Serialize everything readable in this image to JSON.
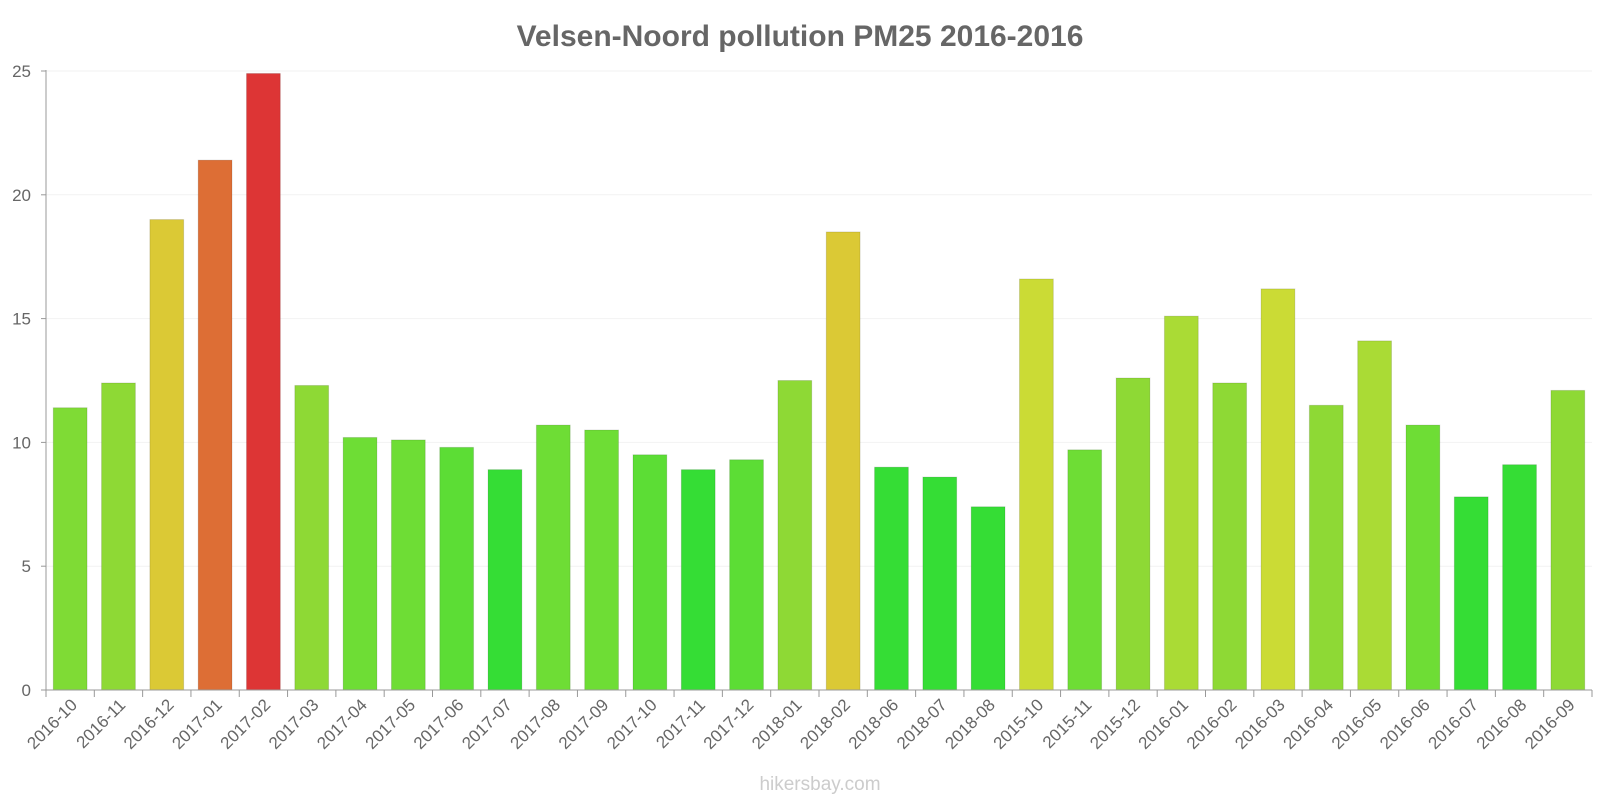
{
  "chart_data": {
    "type": "bar",
    "title": "Velsen-Noord pollution PM25 2016-2016",
    "xlabel": "",
    "ylabel": "",
    "ylim": [
      0,
      25
    ],
    "yticks": [
      0,
      5,
      10,
      15,
      20,
      25
    ],
    "grid": true,
    "categories": [
      "2016-10",
      "2016-11",
      "2016-12",
      "2017-01",
      "2017-02",
      "2017-03",
      "2017-04",
      "2017-05",
      "2017-06",
      "2017-07",
      "2017-08",
      "2017-09",
      "2017-10",
      "2017-11",
      "2017-12",
      "2018-01",
      "2018-02",
      "2018-06",
      "2018-07",
      "2018-08",
      "2015-10",
      "2015-11",
      "2015-12",
      "2016-01",
      "2016-02",
      "2016-03",
      "2016-04",
      "2016-05",
      "2016-06",
      "2016-07",
      "2016-08",
      "2016-09"
    ],
    "values": [
      11.4,
      12.4,
      19.0,
      21.4,
      24.9,
      12.3,
      10.2,
      10.1,
      9.8,
      8.9,
      10.7,
      10.5,
      9.5,
      8.9,
      9.3,
      12.5,
      18.5,
      9.0,
      8.6,
      7.4,
      16.6,
      9.7,
      12.6,
      15.1,
      12.4,
      16.2,
      11.5,
      14.1,
      10.7,
      7.8,
      9.1,
      12.1
    ],
    "colors": [
      "#7fdb35",
      "#8ed935",
      "#dbc935",
      "#dd6e35",
      "#dd3535",
      "#8ed935",
      "#6edd35",
      "#6edd35",
      "#5cdd35",
      "#35dd35",
      "#6edd35",
      "#6edd35",
      "#5cdd35",
      "#35dd35",
      "#5cdd35",
      "#8ed935",
      "#dbc935",
      "#35dd35",
      "#35dd35",
      "#35dd35",
      "#cbdb35",
      "#6edd35",
      "#8ed935",
      "#aadb35",
      "#8ed935",
      "#cbdb35",
      "#8ed935",
      "#aadb35",
      "#6edd35",
      "#35dd35",
      "#35dd35",
      "#8ed935"
    ]
  },
  "footer": "hikersbay.com"
}
